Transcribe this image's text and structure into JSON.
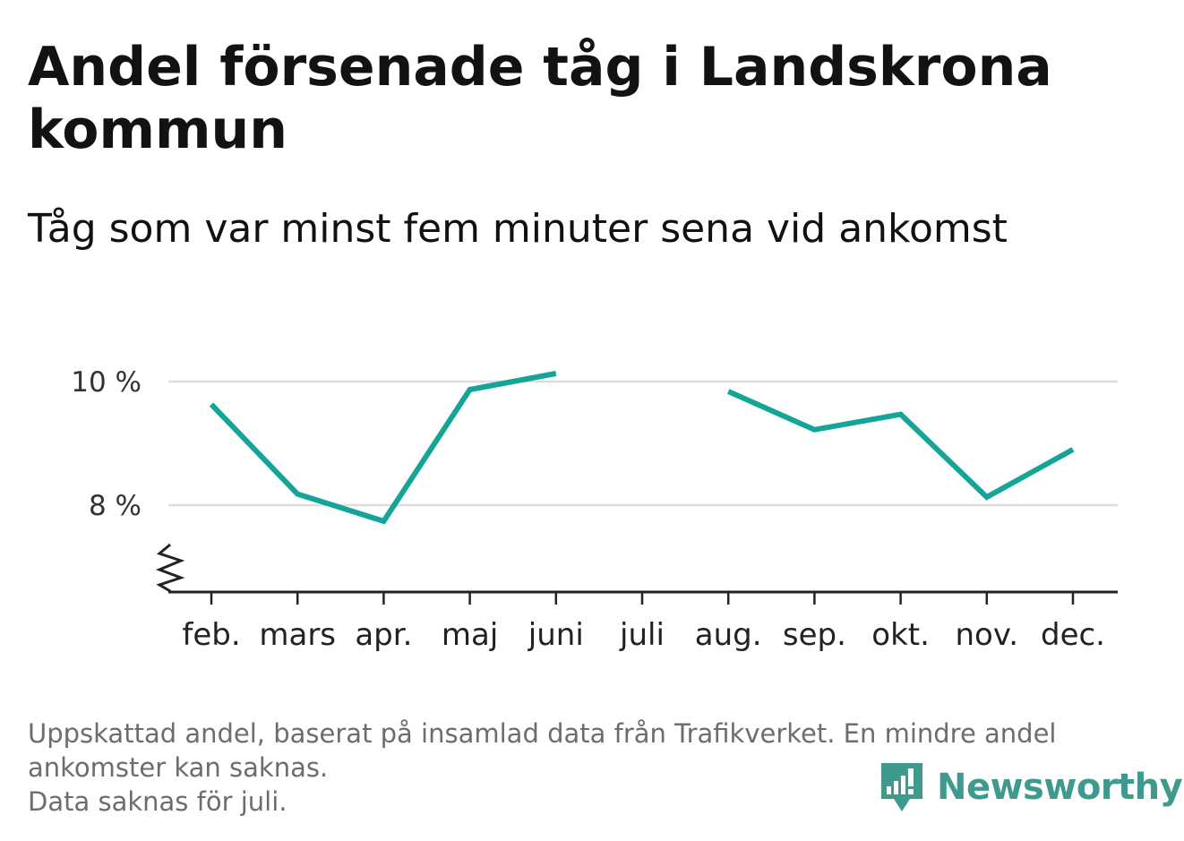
{
  "title": "Andel försenade tåg i Landskrona kommun",
  "subtitle": "Tåg som var minst fem minuter sena vid ankomst",
  "footnote": {
    "line1": "Uppskattad andel, baserat på insamlad data från Trafikverket. En mindre andel",
    "line2": "ankomster kan saknas.",
    "line3": "Data saknas för juli."
  },
  "brand": {
    "name": "Newsworthy",
    "color": "#3f9a8e",
    "icon": "newsworthy-logo-icon"
  },
  "chart_data": {
    "type": "line",
    "title": "Andel försenade tåg i Landskrona kommun",
    "subtitle": "Tåg som var minst fem minuter sena vid ankomst",
    "categories": [
      "feb.",
      "mars",
      "apr.",
      "maj",
      "juni",
      "juli",
      "aug.",
      "sep.",
      "okt.",
      "nov.",
      "dec."
    ],
    "series": [
      {
        "values": [
          9.63,
          8.18,
          7.74,
          9.87,
          10.13,
          null,
          9.84,
          9.22,
          9.47,
          8.13,
          8.9
        ],
        "color": "#14a598"
      }
    ],
    "yticks": [
      {
        "value": 8,
        "label": "8 %"
      },
      {
        "value": 10,
        "label": "10 %"
      }
    ],
    "ylim": [
      6.6,
      10.3
    ],
    "y_axis_break": true,
    "grid": true,
    "legend": "none",
    "xlabel": "",
    "ylabel": ""
  }
}
